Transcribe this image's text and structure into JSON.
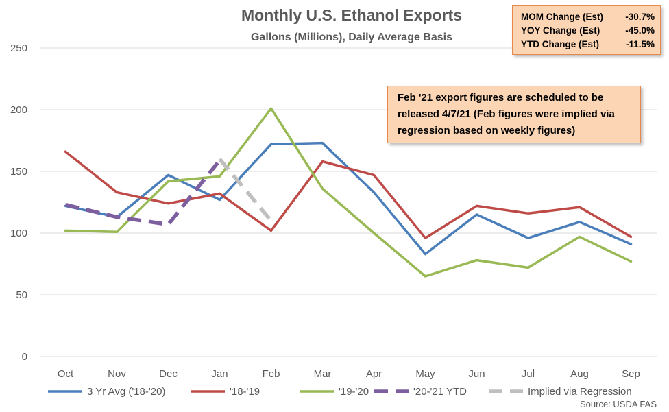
{
  "stats": [
    {
      "label": "MOM Change (Est)",
      "value": "-30.7%"
    },
    {
      "label": "YOY Change (Est)",
      "value": "-45.0%"
    },
    {
      "label": "YTD Change (Est)",
      "value": "-11.5%"
    }
  ],
  "note": "Feb '21 export figures are scheduled to be released 4/7/21 (Feb figures were implied via regression based on weekly figures)",
  "source": "Source: USDA FAS",
  "chart_data": {
    "type": "line",
    "title": "Monthly U.S. Ethanol Exports",
    "subtitle": "Gallons (Millions), Daily Average Basis",
    "categories": [
      "Oct",
      "Nov",
      "Dec",
      "Jan",
      "Feb",
      "Mar",
      "Apr",
      "May",
      "Jun",
      "Jul",
      "Aug",
      "Sep"
    ],
    "ylim": [
      0,
      250
    ],
    "yticks": [
      0,
      50,
      100,
      150,
      200,
      250
    ],
    "grid": true,
    "legend_position": "bottom",
    "series": [
      {
        "name": "3 Yr Avg ('18-'20)",
        "color": "#4A7EBB",
        "dashed": false,
        "values": [
          122,
          113,
          147,
          127,
          172,
          173,
          133,
          83,
          115,
          96,
          109,
          91
        ]
      },
      {
        "name": "'18-'19",
        "color": "#BE4B48",
        "dashed": false,
        "values": [
          166,
          133,
          124,
          132,
          102,
          158,
          147,
          96,
          122,
          116,
          121,
          97
        ]
      },
      {
        "name": "'19-'20",
        "color": "#98B954",
        "dashed": false,
        "values": [
          102,
          101,
          142,
          146,
          201,
          136,
          100,
          65,
          78,
          72,
          97,
          77
        ]
      },
      {
        "name": "'20-'21 YTD",
        "color": "#7D5FA0",
        "dashed": true,
        "values": [
          123,
          113,
          107,
          159,
          null,
          null,
          null,
          null,
          null,
          null,
          null,
          null
        ]
      },
      {
        "name": "Implied via Regression",
        "color": "#BFBFBF",
        "dashed": true,
        "values": [
          null,
          null,
          null,
          160,
          110,
          null,
          null,
          null,
          null,
          null,
          null,
          null
        ]
      }
    ]
  }
}
